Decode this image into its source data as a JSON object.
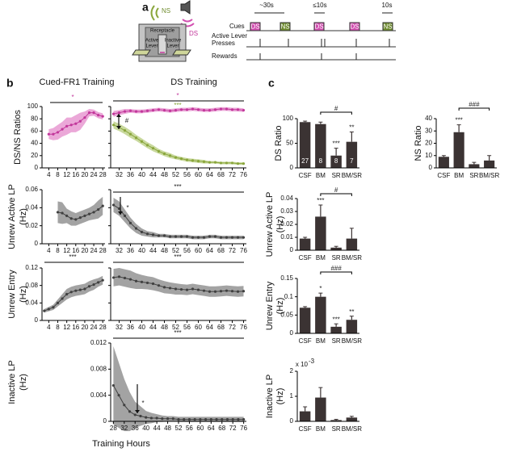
{
  "panel_labels": [
    "a",
    "b",
    "c"
  ],
  "schematic": {
    "ns": "NS",
    "ds": "DS",
    "receptacle": "Receptacle",
    "active_lever": [
      "Active",
      "Lever"
    ],
    "inactive_lever": [
      "Inactive",
      "Lever"
    ]
  },
  "timeline": {
    "durations": [
      "~30s",
      "≤10s",
      "10s"
    ],
    "rows": [
      "Cues",
      [
        "Active Lever",
        "Presses"
      ],
      "Rewards"
    ],
    "cues": [
      "DS",
      "NS",
      "DS",
      "DS",
      "NS"
    ],
    "cue_colors": {
      "DS": "#d24fb0",
      "NS": "#6f8c2f"
    }
  },
  "chart_data": [
    {
      "type": "line",
      "title": "Cued-FR1 Training",
      "ylabel": [
        "DS/NS Ratios"
      ],
      "xlim": [
        1,
        29
      ],
      "xticks": [
        4,
        8,
        12,
        16,
        20,
        24,
        28
      ],
      "ylim": [
        0,
        100
      ],
      "yticks": [
        0,
        20,
        40,
        60,
        80,
        100
      ],
      "series": [
        {
          "color": "#c2379b",
          "band_color": "#eba8d8",
          "x": [
            4,
            6,
            8,
            10,
            12,
            14,
            16,
            18,
            20,
            22,
            24,
            26,
            28
          ],
          "values": [
            55,
            55,
            58,
            63,
            68,
            70,
            72,
            76,
            82,
            90,
            90,
            86,
            84
          ],
          "errors": [
            8,
            10,
            12,
            12,
            14,
            12,
            14,
            14,
            10,
            6,
            5,
            5,
            5
          ]
        }
      ],
      "annotations": [
        {
          "text": "*",
          "color": "#c2379b"
        }
      ]
    },
    {
      "type": "line",
      "title": "DS Training",
      "xlim": [
        29,
        77
      ],
      "xticks": [
        32,
        36,
        40,
        44,
        48,
        52,
        56,
        60,
        64,
        68,
        72,
        76
      ],
      "ylim": [
        0,
        100
      ],
      "yticks": [
        0,
        20,
        40,
        60,
        80,
        100
      ],
      "ytick_labels": false,
      "series": [
        {
          "color": "#c2379b",
          "band_color": "#eba8d8",
          "x": [
            30,
            32,
            34,
            36,
            38,
            40,
            42,
            44,
            46,
            48,
            50,
            52,
            54,
            56,
            58,
            60,
            62,
            64,
            66,
            68,
            70,
            72,
            74,
            76
          ],
          "values": [
            88,
            90,
            92,
            93,
            92,
            92,
            93,
            94,
            95,
            94,
            93,
            94,
            95,
            95,
            96,
            95,
            94,
            94,
            95,
            96,
            96,
            95,
            95,
            94
          ],
          "errors": [
            5,
            4,
            4,
            3,
            3,
            3,
            3,
            3,
            3,
            3,
            3,
            3,
            3,
            3,
            3,
            3,
            3,
            3,
            3,
            3,
            3,
            3,
            3,
            3
          ]
        },
        {
          "color": "#8aa63c",
          "band_color": "#c9d99e",
          "x": [
            30,
            32,
            34,
            36,
            38,
            40,
            42,
            44,
            46,
            48,
            50,
            52,
            54,
            56,
            58,
            60,
            62,
            64,
            66,
            68,
            70,
            72,
            74,
            76
          ],
          "values": [
            70,
            66,
            61,
            55,
            49,
            43,
            37,
            32,
            27,
            23,
            20,
            17,
            15,
            13,
            12,
            11,
            10,
            9,
            9,
            8,
            8,
            8,
            7,
            7
          ],
          "errors": [
            6,
            6,
            6,
            6,
            5,
            5,
            5,
            5,
            4,
            4,
            4,
            3,
            3,
            3,
            3,
            3,
            3,
            2,
            2,
            2,
            2,
            2,
            2,
            2
          ]
        }
      ],
      "annotations": [
        {
          "text": "*",
          "color": "#c2379b"
        },
        {
          "text": "***",
          "color": "#8aa63c"
        },
        {
          "text": "#",
          "color": "#222222"
        }
      ]
    },
    {
      "type": "line",
      "ylabel": [
        "Unrew Active LP",
        "(Hz)"
      ],
      "xlim": [
        1,
        29
      ],
      "xticks": [
        4,
        8,
        12,
        16,
        20,
        24,
        28
      ],
      "ylim": [
        0,
        0.06
      ],
      "yticks": [
        0,
        0.02,
        0.04,
        0.06
      ],
      "series": [
        {
          "color": "#404040",
          "band_color": "#a3a3a3",
          "x": [
            8,
            10,
            12,
            14,
            16,
            18,
            20,
            22,
            24,
            26,
            28
          ],
          "values": [
            0.035,
            0.034,
            0.031,
            0.028,
            0.027,
            0.029,
            0.031,
            0.033,
            0.035,
            0.038,
            0.042
          ],
          "errors": [
            0.012,
            0.012,
            0.008,
            0.008,
            0.007,
            0.007,
            0.007,
            0.007,
            0.008,
            0.01,
            0.01
          ]
        }
      ]
    },
    {
      "type": "line",
      "xlim": [
        29,
        77
      ],
      "xticks": [
        32,
        36,
        40,
        44,
        48,
        52,
        56,
        60,
        64,
        68,
        72,
        76
      ],
      "ylim": [
        0,
        0.06
      ],
      "yticks": [
        0,
        0.02,
        0.04,
        0.06
      ],
      "ytick_labels": false,
      "series": [
        {
          "color": "#404040",
          "band_color": "#a3a3a3",
          "x": [
            30,
            32,
            34,
            36,
            38,
            40,
            42,
            44,
            46,
            48,
            50,
            52,
            54,
            56,
            58,
            60,
            62,
            64,
            66,
            68,
            70,
            72,
            74,
            76
          ],
          "values": [
            0.043,
            0.039,
            0.031,
            0.023,
            0.017,
            0.013,
            0.011,
            0.01,
            0.009,
            0.009,
            0.008,
            0.008,
            0.008,
            0.008,
            0.007,
            0.007,
            0.007,
            0.008,
            0.008,
            0.007,
            0.007,
            0.007,
            0.007,
            0.007
          ],
          "errors": [
            0.008,
            0.008,
            0.007,
            0.006,
            0.005,
            0.004,
            0.003,
            0.003,
            0.002,
            0.002,
            0.002,
            0.002,
            0.002,
            0.002,
            0.002,
            0.002,
            0.002,
            0.002,
            0.002,
            0.002,
            0.002,
            0.002,
            0.002,
            0.002
          ]
        }
      ],
      "annotations": [
        {
          "text": "***",
          "color": "#222222"
        },
        {
          "text": "*",
          "color": "#222222"
        }
      ]
    },
    {
      "type": "line",
      "ylabel": [
        "Unrew Entry",
        "(Hz)"
      ],
      "xlim": [
        1,
        29
      ],
      "xticks": [
        4,
        8,
        12,
        16,
        20,
        24,
        28
      ],
      "ylim": [
        0,
        0.12
      ],
      "yticks": [
        0,
        0.04,
        0.08,
        0.12
      ],
      "series": [
        {
          "color": "#404040",
          "band_color": "#a3a3a3",
          "x": [
            2,
            4,
            6,
            8,
            10,
            12,
            14,
            16,
            18,
            20,
            22,
            24,
            26,
            28
          ],
          "values": [
            0.022,
            0.026,
            0.03,
            0.04,
            0.05,
            0.06,
            0.065,
            0.068,
            0.07,
            0.072,
            0.078,
            0.082,
            0.087,
            0.092
          ],
          "errors": [
            0.004,
            0.005,
            0.006,
            0.008,
            0.01,
            0.012,
            0.012,
            0.012,
            0.012,
            0.012,
            0.012,
            0.012,
            0.01,
            0.01
          ]
        }
      ],
      "annotations": [
        {
          "text": "***",
          "color": "#222222"
        }
      ]
    },
    {
      "type": "line",
      "xlim": [
        29,
        77
      ],
      "xticks": [
        32,
        36,
        40,
        44,
        48,
        52,
        56,
        60,
        64,
        68,
        72,
        76
      ],
      "ylim": [
        0,
        0.12
      ],
      "yticks": [
        0,
        0.04,
        0.08,
        0.12
      ],
      "ytick_labels": false,
      "series": [
        {
          "color": "#404040",
          "band_color": "#a3a3a3",
          "x": [
            30,
            32,
            34,
            36,
            38,
            40,
            42,
            44,
            46,
            48,
            50,
            52,
            54,
            56,
            58,
            60,
            62,
            64,
            66,
            68,
            70,
            72,
            74,
            76
          ],
          "values": [
            0.098,
            0.1,
            0.097,
            0.094,
            0.09,
            0.088,
            0.086,
            0.084,
            0.08,
            0.076,
            0.074,
            0.072,
            0.071,
            0.07,
            0.072,
            0.07,
            0.068,
            0.066,
            0.066,
            0.067,
            0.068,
            0.067,
            0.066,
            0.067
          ],
          "errors": [
            0.02,
            0.02,
            0.02,
            0.02,
            0.018,
            0.016,
            0.015,
            0.015,
            0.014,
            0.014,
            0.013,
            0.013,
            0.012,
            0.012,
            0.012,
            0.012,
            0.012,
            0.012,
            0.012,
            0.012,
            0.012,
            0.012,
            0.012,
            0.012
          ]
        }
      ],
      "annotations": [
        {
          "text": "***",
          "color": "#222222"
        }
      ]
    },
    {
      "type": "line",
      "ylabel": [
        "Inactive  LP",
        "(Hz)"
      ],
      "xlabel": "Training Hours",
      "xlim": [
        27,
        77
      ],
      "xticks": [
        28,
        32,
        36,
        40,
        44,
        48,
        52,
        56,
        60,
        64,
        68,
        72,
        76
      ],
      "ylim": [
        0,
        0.012
      ],
      "yticks": [
        0,
        0.004,
        0.008,
        0.012
      ],
      "series": [
        {
          "color": "#404040",
          "band_color": "#a3a3a3",
          "x": [
            28,
            30,
            32,
            34,
            36,
            38,
            40,
            42,
            44,
            46,
            48,
            50,
            52,
            54,
            56,
            58,
            60,
            62,
            64,
            66,
            68,
            70,
            72,
            74,
            76
          ],
          "values": [
            0.0055,
            0.004,
            0.0025,
            0.0015,
            0.001,
            0.0008,
            0.0006,
            0.0005,
            0.0005,
            0.0004,
            0.0004,
            0.0004,
            0.0003,
            0.0003,
            0.0003,
            0.0003,
            0.0003,
            0.0003,
            0.0003,
            0.0003,
            0.0003,
            0.0003,
            0.0003,
            0.0003,
            0.0003
          ],
          "errors": [
            0.006,
            0.005,
            0.004,
            0.003,
            0.002,
            0.0015,
            0.001,
            0.0008,
            0.0006,
            0.0005,
            0.0004,
            0.0004,
            0.0004,
            0.0004,
            0.0004,
            0.0004,
            0.0004,
            0.0004,
            0.0004,
            0.0004,
            0.0004,
            0.0004,
            0.0004,
            0.0004,
            0.0004
          ]
        }
      ],
      "annotations": [
        {
          "text": "***",
          "color": "#222222"
        },
        {
          "text": "*",
          "color": "#222222"
        }
      ]
    },
    {
      "type": "bar",
      "ylabel": [
        "DS Ratio"
      ],
      "categories": [
        "CSF",
        "BM",
        "SR",
        "BM/SR"
      ],
      "values": [
        93,
        89,
        25,
        53
      ],
      "errors": [
        2,
        4,
        15,
        20
      ],
      "n": [
        27,
        8,
        8,
        7
      ],
      "color": "#3b3333",
      "ylim": [
        0,
        100
      ],
      "yticks": [
        0,
        50,
        100
      ],
      "annotations": [
        {
          "text": "#",
          "color": "#222222"
        },
        {
          "text": "***",
          "color": "#222222"
        },
        {
          "text": "**",
          "color": "#222222"
        }
      ]
    },
    {
      "type": "bar",
      "ylabel": [
        "NS Ratio"
      ],
      "categories": [
        "CSF",
        "BM",
        "SR",
        "BM/SR"
      ],
      "values": [
        9,
        29,
        3,
        6
      ],
      "errors": [
        1,
        6,
        1.5,
        4
      ],
      "color": "#3b3333",
      "ylim": [
        0,
        40
      ],
      "yticks": [
        0,
        10,
        20,
        30,
        40
      ],
      "annotations": [
        {
          "text": "###",
          "color": "#222222"
        },
        {
          "text": "***",
          "color": "#222222"
        }
      ]
    },
    {
      "type": "bar",
      "ylabel": [
        "Unrew Active LP",
        "(Hz)"
      ],
      "categories": [
        "CSF",
        "BM",
        "SR",
        "BM/SR"
      ],
      "values": [
        0.009,
        0.026,
        0.002,
        0.009
      ],
      "errors": [
        0.001,
        0.009,
        0.001,
        0.008
      ],
      "color": "#3b3333",
      "ylim": [
        0,
        0.04
      ],
      "yticks": [
        0,
        0.01,
        0.02,
        0.03,
        0.04
      ],
      "annotations": [
        {
          "text": "#",
          "color": "#222222"
        },
        {
          "text": "***",
          "color": "#222222"
        }
      ]
    },
    {
      "type": "bar",
      "ylabel": [
        "Unrew Entry",
        "(Hz)"
      ],
      "categories": [
        "CSF",
        "BM",
        "SR",
        "BM/SR"
      ],
      "values": [
        0.07,
        0.1,
        0.018,
        0.037
      ],
      "errors": [
        0.003,
        0.01,
        0.008,
        0.01
      ],
      "color": "#3b3333",
      "ylim": [
        0,
        0.15
      ],
      "yticks": [
        0,
        0.05,
        0.1,
        0.15
      ],
      "annotations": [
        {
          "text": "###",
          "color": "#222222"
        },
        {
          "text": "*",
          "color": "#222222"
        },
        {
          "text": "***",
          "color": "#222222"
        },
        {
          "text": "**",
          "color": "#222222"
        }
      ]
    },
    {
      "type": "bar",
      "ylabel": [
        "Inactive  LP",
        "(Hz)"
      ],
      "scale_label": {
        "base": "x 10",
        "exponent": "-3"
      },
      "categories": [
        "CSF",
        "BM",
        "SR",
        "BM/SR"
      ],
      "values": [
        0.4,
        0.95,
        0.05,
        0.15
      ],
      "errors": [
        0.18,
        0.4,
        0.03,
        0.05
      ],
      "color": "#3b3333",
      "ylim": [
        0,
        2
      ],
      "yticks": [
        0,
        1,
        2
      ]
    }
  ]
}
